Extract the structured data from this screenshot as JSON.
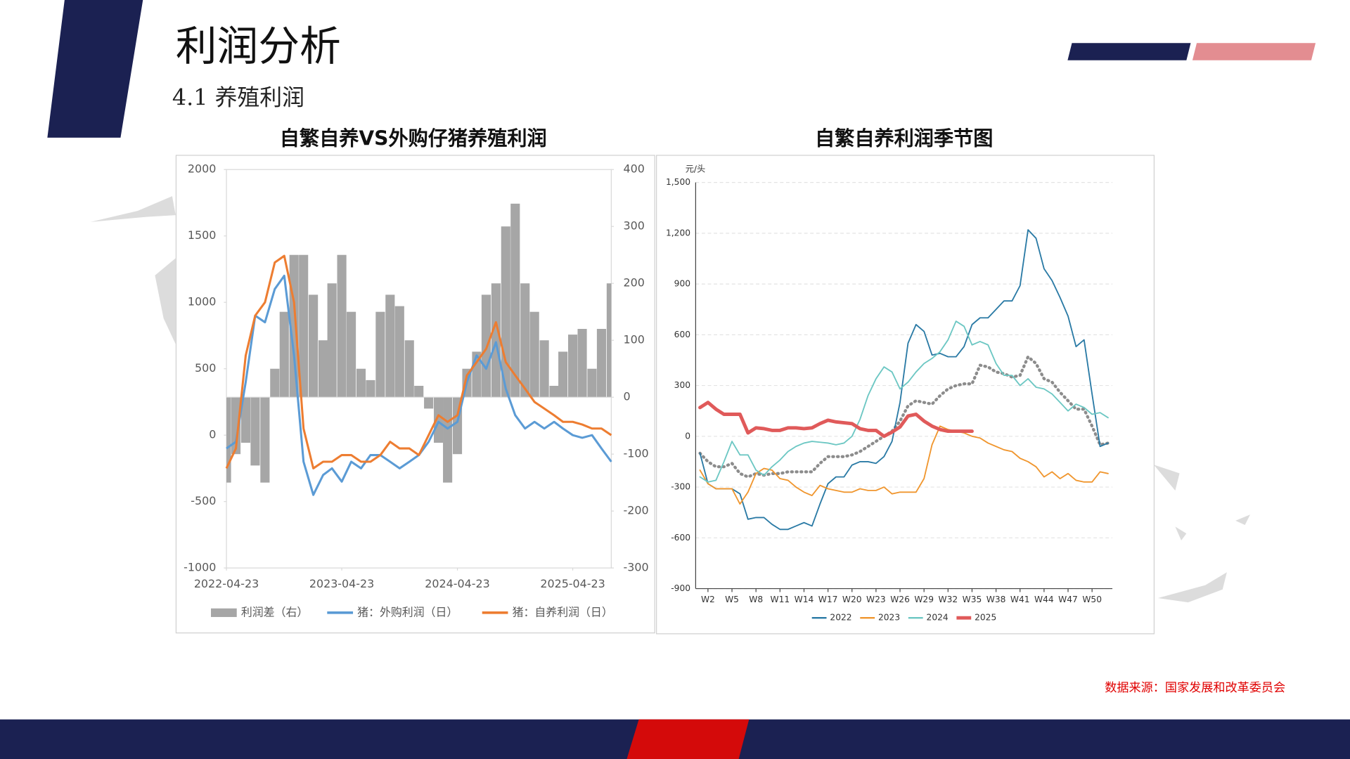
{
  "header": {
    "title": "利润分析",
    "subtitle": "4.1 养殖利润"
  },
  "footer": {
    "source": "数据来源：国家发展和改革委员会"
  },
  "chart_data": [
    {
      "type": "combo",
      "title": "自繁自养VS外购仔猪养殖利润",
      "x": [
        "2022-04-23",
        "2022-05-23",
        "2022-06-23",
        "2022-07-23",
        "2022-08-23",
        "2022-09-23",
        "2022-10-23",
        "2022-11-23",
        "2022-12-23",
        "2023-01-23",
        "2023-02-23",
        "2023-03-23",
        "2023-04-23",
        "2023-05-23",
        "2023-06-23",
        "2023-07-23",
        "2023-08-23",
        "2023-09-23",
        "2023-10-23",
        "2023-11-23",
        "2023-12-23",
        "2024-01-23",
        "2024-02-23",
        "2024-03-23",
        "2024-04-23",
        "2024-05-23",
        "2024-06-23",
        "2024-07-23",
        "2024-08-23",
        "2024-09-23",
        "2024-10-23",
        "2024-11-23",
        "2024-12-23",
        "2025-01-23",
        "2025-02-23",
        "2025-03-23",
        "2025-04-23",
        "2025-05-23",
        "2025-06-23",
        "2025-07-23",
        "2025-08-23"
      ],
      "xlim": [
        "2022-04-23",
        "2025-08-23"
      ],
      "xticks": [
        "2022-04-23",
        "2023-04-23",
        "2024-04-23",
        "2025-04-23"
      ],
      "ylim": [
        -1000,
        2000
      ],
      "yticks": [
        -1000,
        -500,
        0,
        500,
        1000,
        1500,
        2000
      ],
      "y2lim": [
        -300,
        400
      ],
      "y2ticks": [
        -300,
        -200,
        -100,
        0,
        100,
        200,
        300,
        400
      ],
      "series": [
        {
          "name": "利润差（右）",
          "type": "bar",
          "axis": "y2",
          "color": "#a6a6a6",
          "values": [
            -150,
            -100,
            -80,
            -120,
            -150,
            50,
            150,
            250,
            250,
            180,
            100,
            200,
            250,
            150,
            50,
            30,
            150,
            180,
            160,
            100,
            20,
            -20,
            -80,
            -150,
            -100,
            50,
            80,
            180,
            200,
            300,
            340,
            200,
            150,
            100,
            20,
            80,
            110,
            120,
            50,
            120,
            200
          ]
        },
        {
          "name": "猪：外购利润（日）",
          "type": "line",
          "color": "#5b9bd5",
          "values": [
            -100,
            -50,
            400,
            900,
            850,
            1100,
            1200,
            600,
            -200,
            -450,
            -300,
            -250,
            -350,
            -200,
            -250,
            -150,
            -150,
            -200,
            -250,
            -200,
            -150,
            -50,
            100,
            50,
            100,
            400,
            600,
            500,
            700,
            350,
            150,
            50,
            100,
            50,
            100,
            50,
            0,
            -20,
            0,
            -100,
            -200
          ]
        },
        {
          "name": "猪：自养利润（日）",
          "type": "line",
          "color": "#ed7d31",
          "values": [
            -250,
            -100,
            600,
            900,
            1000,
            1300,
            1350,
            1000,
            50,
            -250,
            -200,
            -200,
            -150,
            -150,
            -200,
            -200,
            -150,
            -50,
            -100,
            -100,
            -150,
            0,
            150,
            100,
            150,
            450,
            550,
            650,
            850,
            550,
            450,
            350,
            250,
            200,
            150,
            100,
            100,
            80,
            50,
            50,
            0
          ]
        }
      ]
    },
    {
      "type": "line",
      "title": "自繁自养利润季节图",
      "y_label": "元/头",
      "grid": true,
      "categories": [
        null,
        "W2",
        null,
        null,
        "W5",
        null,
        null,
        "W8",
        null,
        null,
        "W11",
        null,
        null,
        "W14",
        null,
        null,
        "W17",
        null,
        null,
        "W20",
        null,
        null,
        "W23",
        null,
        null,
        "W26",
        null,
        null,
        "W29",
        null,
        null,
        "W32",
        null,
        null,
        "W35",
        null,
        null,
        "W38",
        null,
        null,
        "W41",
        null,
        null,
        "W44",
        null,
        null,
        "W47",
        null,
        null,
        "W50",
        null,
        null
      ],
      "ylim": [
        -900,
        1500
      ],
      "yticks": [
        -900,
        -600,
        -300,
        0,
        300,
        600,
        900,
        {
          "value": 1200,
          "label": "1,200"
        },
        {
          "value": 1500,
          "label": "1,500"
        }
      ],
      "series": [
        {
          "color": "#8c8c8c",
          "line_style": "dotted",
          "values": [
            -100,
            -150,
            -180,
            -180,
            -160,
            -220,
            -240,
            -220,
            -230,
            -220,
            -220,
            -210,
            -210,
            -210,
            -210,
            -160,
            -120,
            -120,
            -120,
            -110,
            -90,
            -60,
            -30,
            0,
            30,
            90,
            180,
            210,
            200,
            190,
            240,
            280,
            300,
            310,
            310,
            420,
            410,
            380,
            370,
            350,
            360,
            470,
            430,
            340,
            320,
            260,
            210,
            160,
            160,
            60,
            -50,
            -40
          ]
        },
        {
          "name": "2022",
          "color": "#2a7aa5",
          "values": [
            -100,
            -280,
            -310,
            -310,
            -310,
            -340,
            -490,
            -480,
            -480,
            -520,
            -550,
            -550,
            -530,
            -510,
            -530,
            -400,
            -280,
            -240,
            -240,
            -170,
            -150,
            -150,
            -160,
            -120,
            -30,
            200,
            550,
            660,
            620,
            480,
            490,
            470,
            470,
            530,
            660,
            700,
            700,
            750,
            800,
            800,
            890,
            1220,
            1170,
            990,
            920,
            820,
            710,
            530,
            570,
            250,
            -60,
            -40
          ]
        },
        {
          "name": "2023",
          "color": "#f0962e",
          "values": [
            -200,
            -280,
            -310,
            -310,
            -310,
            -400,
            -330,
            -220,
            -190,
            -200,
            -250,
            -260,
            -300,
            -330,
            -350,
            -290,
            -310,
            -320,
            -330,
            -330,
            -310,
            -320,
            -320,
            -300,
            -340,
            -330,
            -330,
            -330,
            -250,
            -50,
            60,
            40,
            30,
            20,
            0,
            -10,
            -40,
            -60,
            -80,
            -90,
            -130,
            -150,
            -180,
            -240,
            -210,
            -250,
            -220,
            -260,
            -270,
            -270,
            -210,
            -220
          ]
        },
        {
          "name": "2024",
          "color": "#6cc7c3",
          "values": [
            -240,
            -270,
            -260,
            -150,
            -30,
            -110,
            -110,
            -200,
            -230,
            -180,
            -140,
            -90,
            -60,
            -40,
            -30,
            -35,
            -40,
            -50,
            -40,
            0,
            100,
            240,
            340,
            410,
            380,
            280,
            320,
            380,
            430,
            460,
            500,
            570,
            680,
            650,
            540,
            560,
            540,
            430,
            360,
            360,
            300,
            340,
            290,
            280,
            250,
            200,
            150,
            190,
            170,
            130,
            140,
            110
          ]
        },
        {
          "name": "2025",
          "color": "#e05a5a",
          "highlight": true,
          "values": [
            170,
            200,
            160,
            130,
            130,
            130,
            20,
            50,
            45,
            35,
            35,
            50,
            50,
            45,
            50,
            75,
            95,
            85,
            80,
            75,
            45,
            35,
            35,
            0,
            25,
            55,
            120,
            130,
            90,
            60,
            40,
            30,
            30,
            30,
            30,
            null,
            null,
            null,
            null,
            null,
            null,
            null,
            null,
            null,
            null,
            null,
            null,
            null,
            null,
            null,
            null,
            null
          ]
        }
      ]
    }
  ]
}
